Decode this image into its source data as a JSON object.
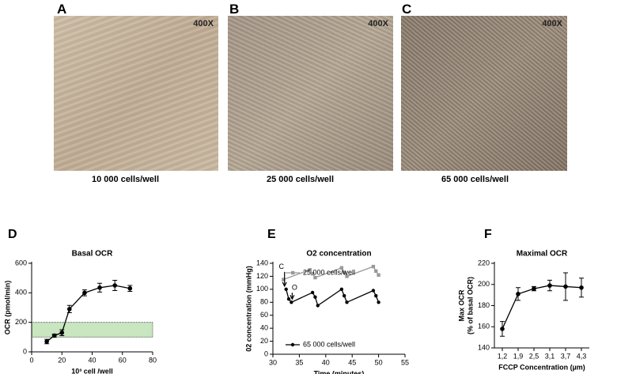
{
  "panels": [
    {
      "label": "A",
      "magnification": "400X",
      "caption": "10 000 cells/well"
    },
    {
      "label": "B",
      "magnification": "400X",
      "caption": "25 000 cells/well"
    },
    {
      "label": "C",
      "magnification": "400X",
      "caption": "65 000 cells/well"
    }
  ],
  "chart_data": [
    {
      "label": "D",
      "type": "line",
      "title": "Basal OCR",
      "x_label": "10³ cell /well",
      "y_label": "OCR (pmol/min)",
      "x": [
        10,
        15,
        20,
        25,
        35,
        45,
        55,
        65
      ],
      "series": [
        {
          "color": "#000000",
          "values": [
            70,
            110,
            130,
            290,
            400,
            435,
            450,
            430
          ],
          "errors": [
            15,
            10,
            20,
            25,
            20,
            30,
            35,
            20
          ]
        }
      ],
      "xlim": [
        0,
        80
      ],
      "xticks": [
        0,
        20,
        40,
        60,
        80
      ],
      "ylim": [
        0,
        600
      ],
      "yticks": [
        0,
        200,
        400,
        600
      ],
      "band": [
        100,
        200
      ],
      "band_color": "#c8e6bf"
    },
    {
      "label": "E",
      "type": "line",
      "title": "O2 concentration",
      "x_label": "Time (minutes)",
      "y_label": "02 concentration (mmHg)",
      "series": [
        {
          "name": "25 000 cells/well",
          "color": "#999999",
          "marker": "square",
          "x": [
            32,
            37,
            37.5,
            38,
            43,
            43.5,
            44,
            49,
            49.5,
            50
          ],
          "values": [
            115,
            130,
            124,
            118,
            133,
            126,
            120,
            135,
            128,
            122
          ]
        },
        {
          "name": "65 000 cells/well",
          "color": "#000000",
          "marker": "circle",
          "x": [
            32.5,
            33,
            33.5,
            37.5,
            38,
            38.5,
            43,
            43.5,
            44,
            49,
            49.5,
            50
          ],
          "values": [
            100,
            85,
            80,
            95,
            88,
            75,
            100,
            90,
            80,
            98,
            90,
            80
          ]
        }
      ],
      "annotations": [
        "C",
        "O"
      ],
      "xlim": [
        30,
        55
      ],
      "xticks": [
        30,
        35,
        40,
        45,
        50,
        55
      ],
      "ylim": [
        0,
        140
      ],
      "yticks": [
        0,
        20,
        40,
        60,
        80,
        100,
        120,
        140
      ]
    },
    {
      "label": "F",
      "type": "line",
      "title": "Maximal OCR",
      "x_label": "FCCP Concentration (µm)",
      "y_label": [
        "Max OCR",
        "(% of basal OCR)"
      ],
      "categories": [
        "1,2",
        "1,9",
        "2,5",
        "3,1",
        "3,7",
        "4,3"
      ],
      "series": [
        {
          "color": "#000000",
          "values": [
            158,
            191,
            196,
            199,
            198,
            197
          ],
          "errors": [
            7,
            6,
            2,
            5,
            13,
            9
          ]
        }
      ],
      "ylim": [
        140,
        220
      ],
      "yticks": [
        140,
        160,
        180,
        200,
        220
      ]
    }
  ]
}
